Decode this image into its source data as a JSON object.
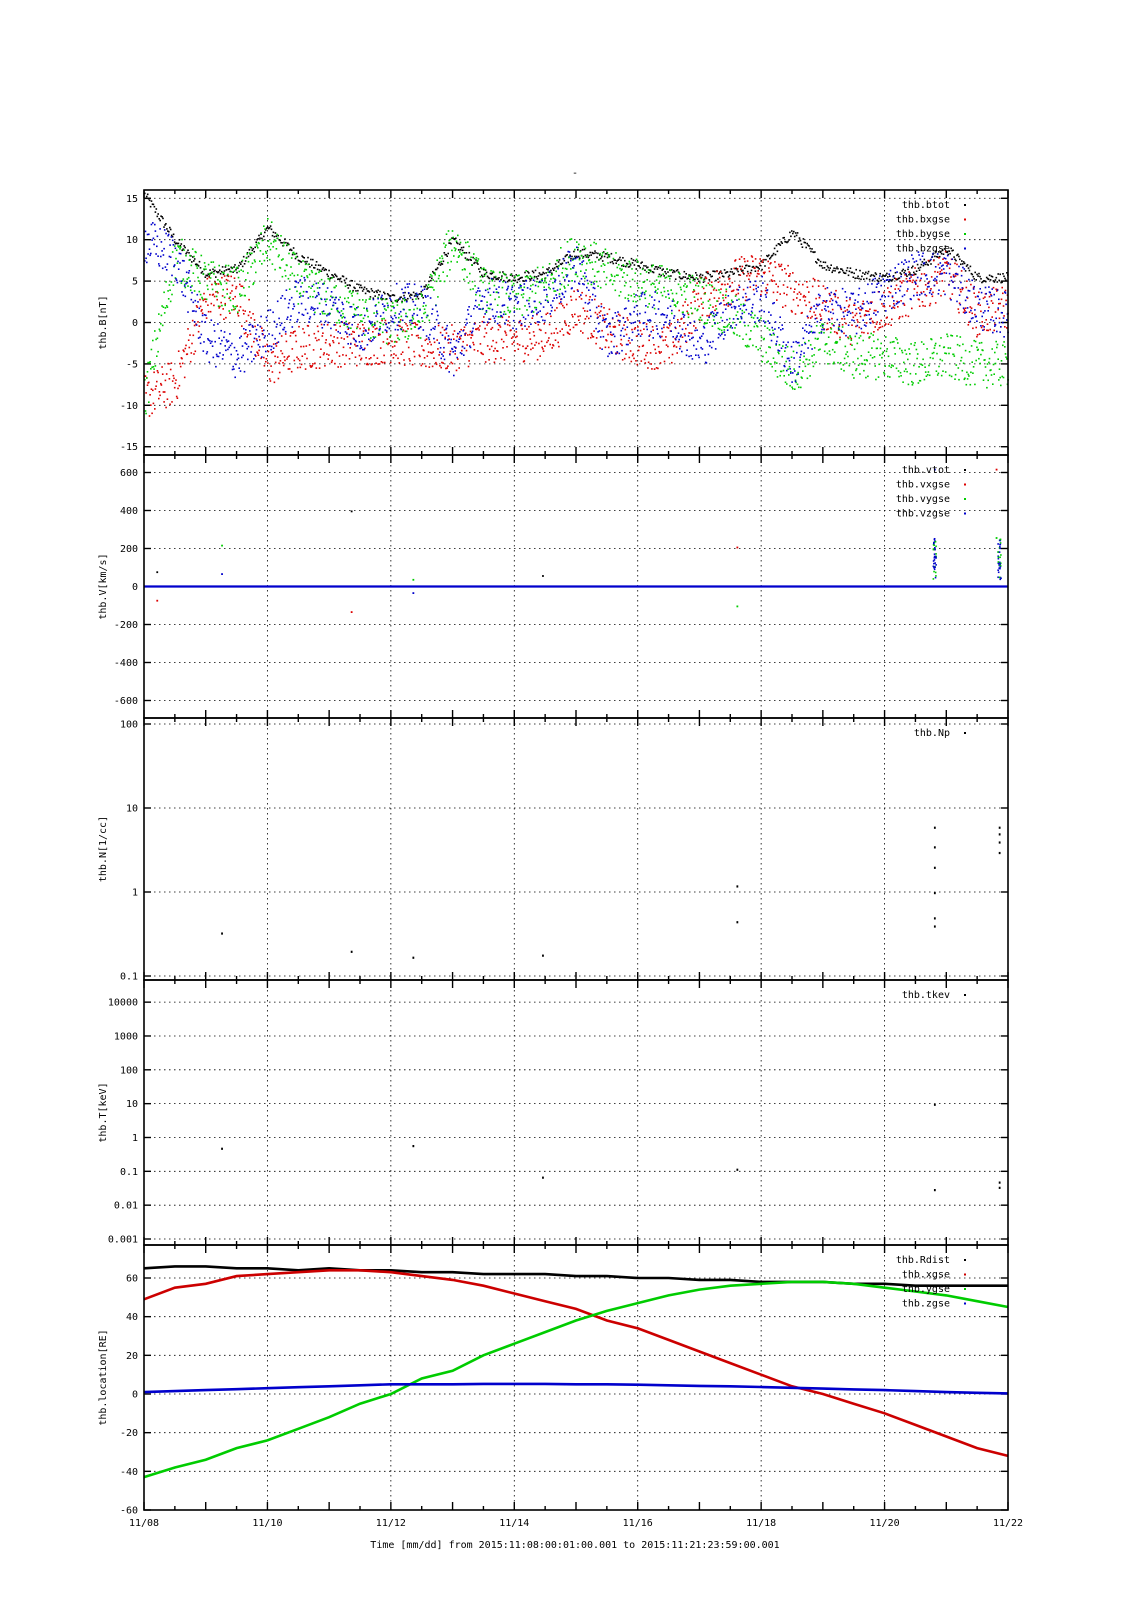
{
  "figure": {
    "top_mark": "-",
    "xlabel": "Time [mm/dd]  from 2015:11:08:00:01:00.001  to  2015:11:21:23:59:00.001"
  },
  "chart_data": [
    {
      "type": "scatter",
      "panel": "thb.B",
      "ylabel": "thb.B[nT]",
      "xlim": [
        "11/08",
        "11/22"
      ],
      "ylim": [
        -16,
        16
      ],
      "scale": "linear",
      "yticks": [
        -15,
        -10,
        -5,
        0,
        5,
        10,
        15
      ],
      "ytick_labels": [
        "-15",
        "-10",
        "-5",
        "0",
        "5",
        "10",
        "15"
      ],
      "x_day_offset": [
        0,
        0.5,
        1,
        1.5,
        2,
        2.5,
        3,
        3.5,
        4,
        4.5,
        5,
        5.5,
        6,
        6.5,
        7,
        7.5,
        8,
        8.5,
        9,
        9.5,
        10,
        10.5,
        11,
        11.5,
        12,
        12.5,
        13,
        13.5,
        14
      ],
      "series": [
        {
          "name": "thb.btot",
          "color": "#000000",
          "values": [
            15.5,
            10,
            6,
            6.5,
            11.5,
            8,
            6,
            4,
            3,
            3.5,
            10,
            6,
            5.5,
            6,
            8.5,
            8,
            7,
            6,
            5.5,
            6,
            7,
            11,
            7,
            6,
            5.5,
            6.5,
            9,
            5.5,
            5.5
          ]
        },
        {
          "name": "thb.bxgse",
          "color": "#dd0000",
          "values": [
            -9,
            -7,
            3,
            3.5,
            -5,
            -3,
            -2.5,
            -2.5,
            -2,
            -3,
            -3,
            -2,
            -2,
            -1.5,
            2,
            -1,
            -2.5,
            -3,
            3,
            5,
            6,
            4,
            2,
            0,
            2,
            4,
            6,
            1,
            2
          ]
        },
        {
          "name": "thb.bygse",
          "color": "#00cc00",
          "values": [
            -9,
            8,
            5,
            4,
            10,
            5,
            3,
            1,
            0,
            1,
            10,
            4,
            3,
            4.5,
            8.5,
            6,
            5,
            4,
            3,
            1,
            -2,
            -6,
            -2,
            -4,
            -4,
            -5,
            -4,
            -5,
            -5
          ]
        },
        {
          "name": "thb.bzgse",
          "color": "#0000cc",
          "values": [
            10,
            8,
            -2,
            -4,
            -1,
            3,
            2,
            -1,
            2,
            2,
            -4,
            3,
            2,
            3,
            7,
            -2,
            1,
            1,
            -3,
            2,
            3,
            -5,
            2,
            1,
            4,
            6,
            6,
            2,
            1
          ]
        }
      ]
    },
    {
      "type": "scatter",
      "panel": "thb.V",
      "ylabel": "thb.V[km/s]",
      "xlim": [
        "11/08",
        "11/22"
      ],
      "ylim": [
        -650,
        650
      ],
      "scale": "linear",
      "yticks": [
        -600,
        -400,
        -200,
        0,
        200,
        400,
        600
      ],
      "ytick_labels": [
        "-600",
        "-400",
        "-200",
        "0",
        "200",
        "400",
        "600"
      ],
      "baseline_value": 0,
      "series": [
        {
          "name": "thb.vtot",
          "color": "#000000"
        },
        {
          "name": "thb.vxgse",
          "color": "#dd0000"
        },
        {
          "name": "thb.vygse",
          "color": "#00cc00"
        },
        {
          "name": "thb.vzgse",
          "color": "#0000cc"
        }
      ],
      "spike_points": [
        {
          "x_day_offset": 0.2,
          "y": 80
        },
        {
          "x_day_offset": 0.2,
          "y": -70
        },
        {
          "x_day_offset": 1.25,
          "y": 220
        },
        {
          "x_day_offset": 1.25,
          "y": 70
        },
        {
          "x_day_offset": 3.35,
          "y": 400
        },
        {
          "x_day_offset": 3.35,
          "y": -130
        },
        {
          "x_day_offset": 4.35,
          "y": 40
        },
        {
          "x_day_offset": 4.35,
          "y": -30
        },
        {
          "x_day_offset": 6.45,
          "y": 60
        },
        {
          "x_day_offset": 9.6,
          "y": 210
        },
        {
          "x_day_offset": 9.6,
          "y": -100
        },
        {
          "x_day_offset": 12.8,
          "y": 620
        },
        {
          "x_day_offset": 12.8,
          "y": 200
        },
        {
          "x_day_offset": 13.8,
          "y": 620
        },
        {
          "x_day_offset": 13.8,
          "y": 260
        }
      ]
    },
    {
      "type": "scatter",
      "panel": "thb.N",
      "ylabel": "thb.N[1/cc]",
      "xlim": [
        "11/08",
        "11/22"
      ],
      "ylim": [
        0.1,
        100
      ],
      "scale": "log",
      "yticks": [
        0.1,
        1,
        10,
        100
      ],
      "ytick_labels": [
        "0.1",
        "1",
        "10",
        "100"
      ],
      "series": [
        {
          "name": "thb.Np",
          "color": "#000000"
        }
      ],
      "points": [
        {
          "x_day_offset": 1.25,
          "y": 0.33
        },
        {
          "x_day_offset": 3.35,
          "y": 0.2
        },
        {
          "x_day_offset": 4.35,
          "y": 0.17
        },
        {
          "x_day_offset": 6.45,
          "y": 0.18
        },
        {
          "x_day_offset": 9.6,
          "y": 0.45
        },
        {
          "x_day_offset": 9.6,
          "y": 1.2
        },
        {
          "x_day_offset": 12.8,
          "y": 0.4
        },
        {
          "x_day_offset": 12.8,
          "y": 0.5
        },
        {
          "x_day_offset": 12.8,
          "y": 1
        },
        {
          "x_day_offset": 12.8,
          "y": 2
        },
        {
          "x_day_offset": 12.8,
          "y": 3.5
        },
        {
          "x_day_offset": 12.8,
          "y": 6
        },
        {
          "x_day_offset": 13.85,
          "y": 3
        },
        {
          "x_day_offset": 13.85,
          "y": 4
        },
        {
          "x_day_offset": 13.85,
          "y": 5
        },
        {
          "x_day_offset": 13.85,
          "y": 6
        }
      ]
    },
    {
      "type": "scatter",
      "panel": "thb.T",
      "ylabel": "thb.T[keV]",
      "xlim": [
        "11/08",
        "11/22"
      ],
      "ylim": [
        0.001,
        30000
      ],
      "scale": "log",
      "yticks": [
        0.001,
        0.01,
        0.1,
        1,
        10,
        100,
        1000,
        10000
      ],
      "ytick_labels": [
        "0.001",
        "0.01",
        "0.1",
        "1",
        "10",
        "100",
        "1000",
        "10000"
      ],
      "series": [
        {
          "name": "thb.tkev",
          "color": "#000000"
        }
      ],
      "points": [
        {
          "x_day_offset": 1.25,
          "y": 0.5
        },
        {
          "x_day_offset": 4.35,
          "y": 0.6
        },
        {
          "x_day_offset": 6.45,
          "y": 0.07
        },
        {
          "x_day_offset": 9.6,
          "y": 0.12
        },
        {
          "x_day_offset": 12.8,
          "y": 10
        },
        {
          "x_day_offset": 12.8,
          "y": 0.03
        },
        {
          "x_day_offset": 13.85,
          "y": 0.05
        },
        {
          "x_day_offset": 13.85,
          "y": 0.035
        }
      ]
    },
    {
      "type": "line",
      "panel": "thb.location",
      "ylabel": "thb.location[RE]",
      "xlim": [
        "11/08",
        "11/22"
      ],
      "ylim": [
        -60,
        75
      ],
      "scale": "linear",
      "yticks": [
        -60,
        -40,
        -20,
        0,
        20,
        40,
        60
      ],
      "ytick_labels": [
        "-60",
        "-40",
        "-20",
        "0",
        "20",
        "40",
        "60"
      ],
      "x_day_offset": [
        0,
        0.5,
        1,
        1.5,
        2,
        2.5,
        3,
        3.5,
        4,
        4.5,
        5,
        5.5,
        6,
        6.5,
        7,
        7.5,
        8,
        8.5,
        9,
        9.5,
        10,
        10.5,
        11,
        11.5,
        12,
        12.5,
        13,
        13.5,
        14
      ],
      "series": [
        {
          "name": "thb.Rdist",
          "color": "#000000",
          "values": [
            65,
            66,
            66,
            65,
            65,
            64,
            65,
            64,
            64,
            63,
            63,
            62,
            62,
            62,
            61,
            61,
            60,
            60,
            59,
            59,
            58,
            58,
            58,
            57,
            57,
            56,
            56,
            56,
            56
          ]
        },
        {
          "name": "thb.xgse",
          "color": "#cc0000",
          "values": [
            49,
            55,
            57,
            61,
            62,
            63,
            64,
            64,
            63,
            61,
            59,
            56,
            52,
            48,
            44,
            38,
            34,
            28,
            22,
            16,
            10,
            4,
            0,
            -5,
            -10,
            -16,
            -22,
            -28,
            -32
          ]
        },
        {
          "name": "thb.ygse",
          "color": "#00cc00",
          "values": [
            -43,
            -38,
            -34,
            -28,
            -24,
            -18,
            -12,
            -5,
            0,
            8,
            12,
            20,
            26,
            32,
            38,
            43,
            47,
            51,
            54,
            56,
            57,
            58,
            58,
            57,
            55,
            53,
            51,
            48,
            45
          ]
        },
        {
          "name": "thb.zgse",
          "color": "#0000cc",
          "values": [
            1,
            1.5,
            2,
            2.5,
            3,
            3.5,
            4,
            4.5,
            5,
            5,
            5,
            5.2,
            5.2,
            5.2,
            5,
            5,
            4.8,
            4.5,
            4.2,
            4,
            3.6,
            3.2,
            2.8,
            2.4,
            2,
            1.5,
            1,
            0.6,
            0.3
          ]
        }
      ]
    }
  ],
  "xaxis": {
    "tick_labels": [
      "11/08",
      "11/10",
      "11/12",
      "11/14",
      "11/16",
      "11/18",
      "11/20",
      "11/22"
    ],
    "days_total": 14,
    "label_every_days": 2
  }
}
